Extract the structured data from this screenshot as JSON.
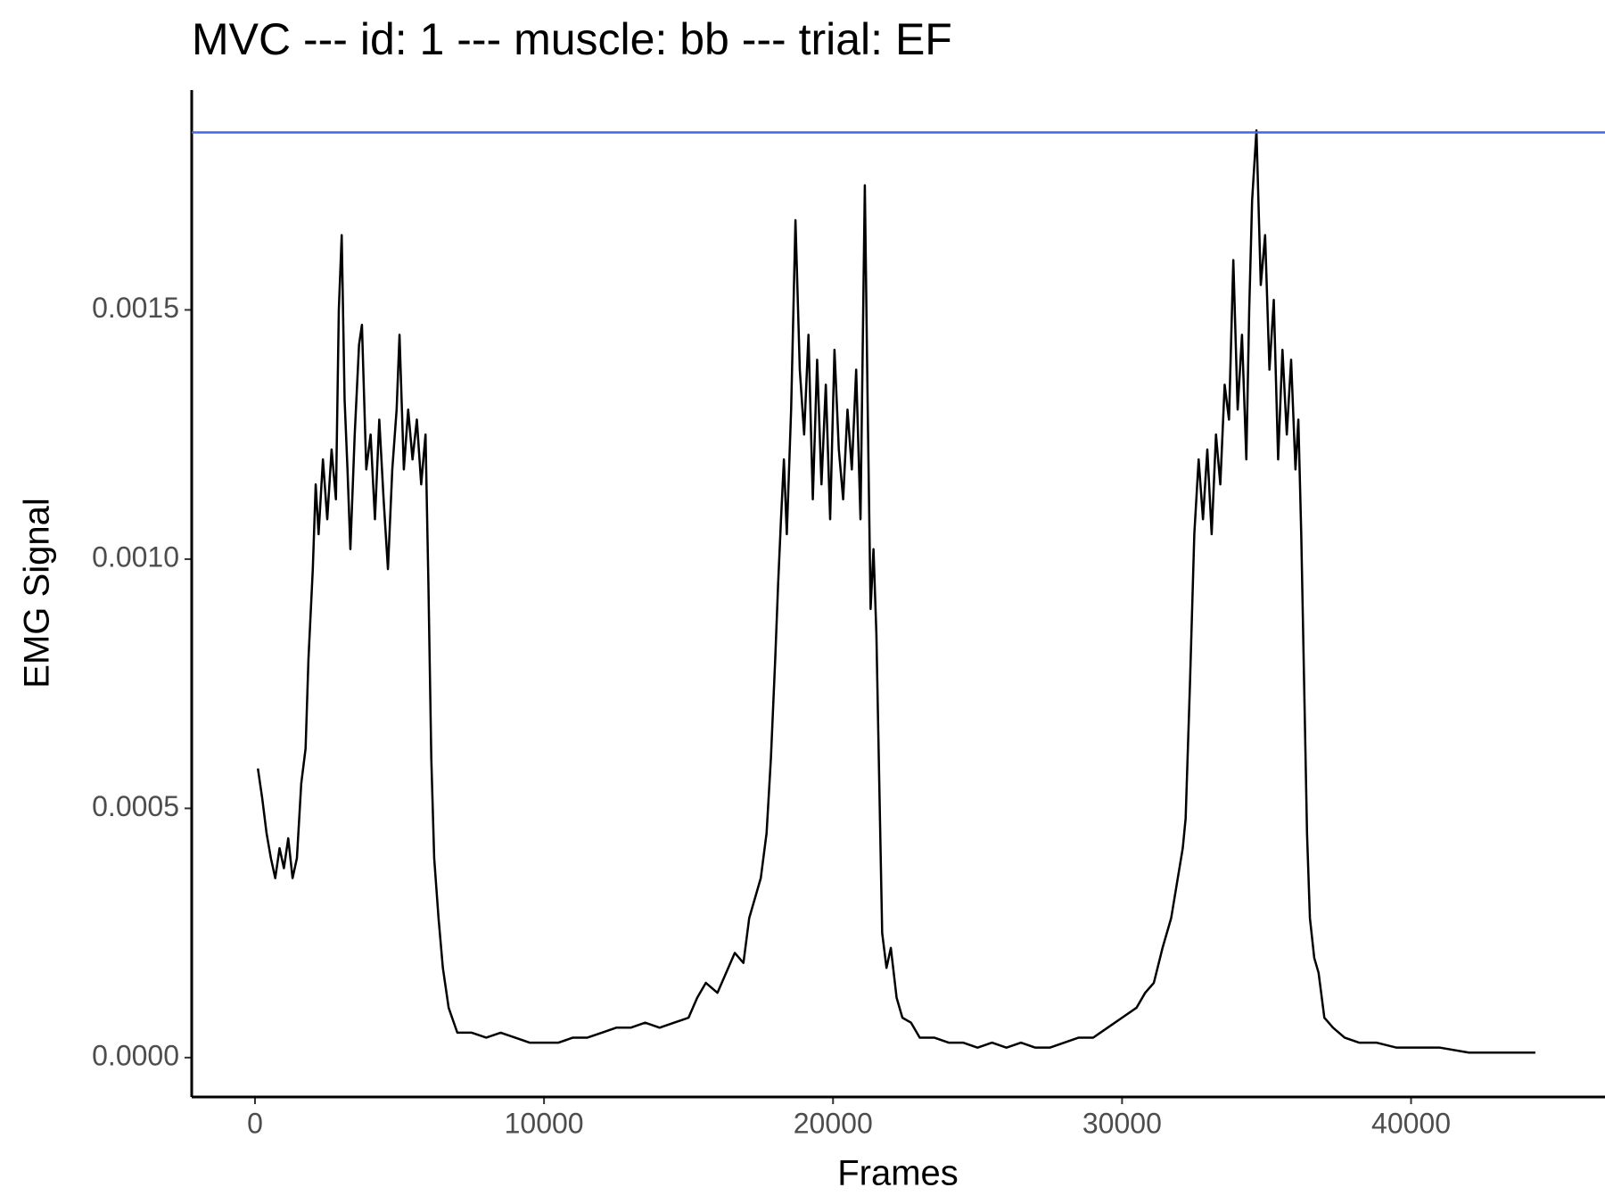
{
  "chart_data": {
    "type": "line",
    "title": "MVC --- id: 1 --- muscle: bb --- trial: EF",
    "x_label": "Frames",
    "y_label": "EMG Signal",
    "x": [
      100,
      250,
      400,
      550,
      700,
      850,
      1000,
      1150,
      1300,
      1450,
      1600,
      1750,
      1850,
      2000,
      2100,
      2200,
      2350,
      2500,
      2650,
      2800,
      2900,
      3000,
      3100,
      3200,
      3300,
      3450,
      3600,
      3700,
      3850,
      4000,
      4150,
      4300,
      4450,
      4600,
      4750,
      4900,
      5000,
      5150,
      5300,
      5450,
      5600,
      5750,
      5900,
      6000,
      6100,
      6200,
      6350,
      6500,
      6700,
      7000,
      7500,
      8000,
      8500,
      9000,
      9500,
      10000,
      10500,
      11000,
      11500,
      12000,
      12500,
      13000,
      13500,
      14000,
      14500,
      15000,
      15300,
      15600,
      16000,
      16300,
      16600,
      16900,
      17100,
      17300,
      17500,
      17700,
      17850,
      18000,
      18100,
      18200,
      18300,
      18400,
      18550,
      18700,
      18850,
      19000,
      19150,
      19300,
      19450,
      19600,
      19750,
      19900,
      20050,
      20200,
      20350,
      20500,
      20650,
      20800,
      20950,
      21100,
      21200,
      21300,
      21400,
      21500,
      21600,
      21700,
      21850,
      22000,
      22200,
      22400,
      22700,
      23000,
      23500,
      24000,
      24500,
      25000,
      25500,
      26000,
      26500,
      27000,
      27500,
      28000,
      28500,
      29000,
      29500,
      30000,
      30500,
      30800,
      31100,
      31400,
      31700,
      31900,
      32100,
      32200,
      32350,
      32500,
      32650,
      32800,
      32950,
      33100,
      33250,
      33400,
      33550,
      33700,
      33850,
      34000,
      34150,
      34300,
      34400,
      34500,
      34650,
      34800,
      34950,
      35100,
      35250,
      35400,
      35550,
      35700,
      35850,
      36000,
      36100,
      36200,
      36300,
      36400,
      36500,
      36650,
      36800,
      37000,
      37300,
      37700,
      38200,
      38800,
      39500,
      40200,
      41000,
      42000,
      43000,
      44300
    ],
    "values": [
      0.00058,
      0.00052,
      0.00045,
      0.0004,
      0.00036,
      0.00042,
      0.00038,
      0.00044,
      0.00036,
      0.0004,
      0.00055,
      0.00062,
      0.0008,
      0.00098,
      0.00115,
      0.00105,
      0.0012,
      0.00108,
      0.00122,
      0.00112,
      0.0015,
      0.00165,
      0.00132,
      0.00118,
      0.00102,
      0.00125,
      0.00143,
      0.00147,
      0.00118,
      0.00125,
      0.00108,
      0.00128,
      0.00112,
      0.00098,
      0.00118,
      0.0013,
      0.00145,
      0.00118,
      0.0013,
      0.0012,
      0.00128,
      0.00115,
      0.00125,
      0.00095,
      0.0006,
      0.0004,
      0.00028,
      0.00018,
      0.0001,
      5e-05,
      5e-05,
      4e-05,
      5e-05,
      4e-05,
      3e-05,
      3e-05,
      3e-05,
      4e-05,
      4e-05,
      5e-05,
      6e-05,
      6e-05,
      7e-05,
      6e-05,
      7e-05,
      8e-05,
      0.00012,
      0.00015,
      0.00013,
      0.00017,
      0.00021,
      0.00019,
      0.00028,
      0.00032,
      0.00036,
      0.00045,
      0.0006,
      0.0008,
      0.00095,
      0.00108,
      0.0012,
      0.00105,
      0.0013,
      0.00168,
      0.00138,
      0.00125,
      0.00145,
      0.00112,
      0.0014,
      0.00115,
      0.00135,
      0.00108,
      0.00142,
      0.00122,
      0.00112,
      0.0013,
      0.00118,
      0.00138,
      0.00108,
      0.00175,
      0.0013,
      0.0009,
      0.00102,
      0.00085,
      0.00055,
      0.00025,
      0.00018,
      0.00022,
      0.00012,
      8e-05,
      7e-05,
      4e-05,
      4e-05,
      3e-05,
      3e-05,
      2e-05,
      3e-05,
      2e-05,
      3e-05,
      2e-05,
      2e-05,
      3e-05,
      4e-05,
      4e-05,
      6e-05,
      8e-05,
      0.0001,
      0.00013,
      0.00015,
      0.00022,
      0.00028,
      0.00035,
      0.00042,
      0.00048,
      0.00075,
      0.00105,
      0.0012,
      0.00108,
      0.00122,
      0.00105,
      0.00125,
      0.00115,
      0.00135,
      0.00128,
      0.0016,
      0.0013,
      0.00145,
      0.0012,
      0.0015,
      0.00172,
      0.00186,
      0.00155,
      0.00165,
      0.00138,
      0.00152,
      0.0012,
      0.00142,
      0.00125,
      0.0014,
      0.00118,
      0.00128,
      0.00105,
      0.00075,
      0.00045,
      0.00028,
      0.0002,
      0.00017,
      8e-05,
      6e-05,
      4e-05,
      3e-05,
      3e-05,
      2e-05,
      2e-05,
      2e-05,
      1e-05,
      1e-05,
      1e-05
    ],
    "color": "#000000",
    "hline": {
      "value": 0.001856,
      "color": "#4169e1"
    },
    "xlim": [
      -2190,
      46710
    ],
    "xticks": [
      0,
      10000,
      20000,
      30000,
      40000
    ],
    "ylim": [
      -7.9e-05,
      0.001941
    ],
    "yticks": [
      {
        "value": 0,
        "label": "0.0000"
      },
      {
        "value": 0.0005,
        "label": "0.0005"
      },
      {
        "value": 0.001,
        "label": "0.0010"
      },
      {
        "value": 0.0015,
        "label": "0.0015"
      }
    ],
    "grid": false
  }
}
